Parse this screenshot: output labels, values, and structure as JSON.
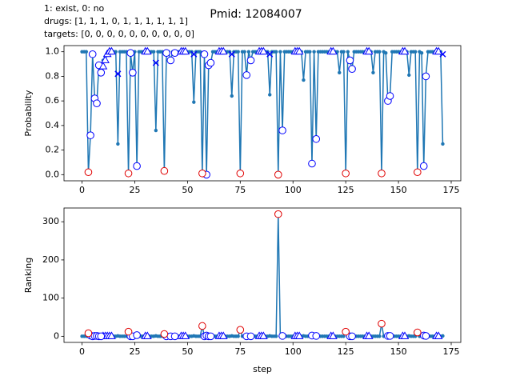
{
  "suptitle": "Pmid: 12084007",
  "annotation": [
    "1: exist,    0: no",
    "drugs: [1, 1, 1, 0, 1, 1, 1, 1, 1, 1]",
    "targets: [0, 0, 0, 0, 0, 0, 0, 0, 0, 0]"
  ],
  "chart_data": [
    {
      "type": "line",
      "ylabel": "Probability",
      "xlim": [
        -8.55,
        179.55
      ],
      "ylim": [
        -0.05,
        1.05
      ],
      "xticks": [
        0,
        25,
        50,
        75,
        100,
        125,
        150,
        175
      ],
      "yticks": [
        {
          "value": 0,
          "label": "0.0"
        },
        0.2,
        0.4,
        0.6,
        0.8,
        {
          "value": 1,
          "label": "1.0"
        }
      ],
      "series": [
        {
          "color": "#1f77b4",
          "marker": "dot",
          "line": true,
          "x": [
            0,
            1,
            2,
            3,
            4,
            5,
            6,
            7,
            8,
            9,
            10,
            11,
            12,
            13,
            14,
            15,
            16,
            17,
            18,
            19,
            20,
            21,
            22,
            23,
            24,
            25,
            26,
            27,
            28,
            29,
            30,
            31,
            32,
            33,
            34,
            35,
            36,
            37,
            38,
            39,
            40,
            41,
            42,
            43,
            44,
            45,
            46,
            47,
            48,
            49,
            50,
            51,
            52,
            53,
            54,
            55,
            56,
            57,
            58,
            59,
            60,
            61,
            62,
            63,
            64,
            65,
            66,
            67,
            68,
            69,
            70,
            71,
            72,
            73,
            74,
            75,
            76,
            77,
            78,
            79,
            80,
            81,
            82,
            83,
            84,
            85,
            86,
            87,
            88,
            89,
            90,
            91,
            92,
            93,
            94,
            95,
            96,
            97,
            98,
            99,
            100,
            101,
            102,
            103,
            104,
            105,
            106,
            107,
            108,
            109,
            110,
            111,
            112,
            113,
            114,
            115,
            116,
            117,
            118,
            119,
            120,
            121,
            122,
            123,
            124,
            125,
            126,
            127,
            128,
            129,
            130,
            131,
            132,
            133,
            134,
            135,
            136,
            137,
            138,
            139,
            140,
            141,
            142,
            143,
            144,
            145,
            146,
            147,
            148,
            149,
            150,
            151,
            152,
            153,
            154,
            155,
            156,
            157,
            158,
            159,
            160,
            161,
            162,
            163,
            164,
            165,
            166,
            167,
            168,
            169,
            170,
            171
          ],
          "values": [
            1,
            1,
            1,
            0.02,
            0.32,
            0.98,
            0.62,
            0.58,
            0.89,
            0.83,
            0.93,
            0.96,
            0.98,
            1,
            1,
            1,
            1,
            0.25,
            1,
            1,
            1,
            1,
            0.01,
            0.99,
            0.83,
            1,
            0.07,
            1,
            1,
            1,
            1,
            1,
            1,
            1,
            1,
            0.36,
            1,
            1,
            1,
            0.03,
            0.99,
            1,
            0.93,
            1,
            1,
            1,
            1,
            1,
            1,
            1,
            1,
            1,
            1,
            0.59,
            1,
            1,
            1,
            0.01,
            0.98,
            0,
            0.89,
            0.91,
            1,
            1,
            1,
            1,
            1,
            1,
            1,
            1,
            1,
            0.64,
            1,
            1,
            1,
            0.01,
            1,
            1,
            0.81,
            1,
            0.93,
            1,
            1,
            1,
            1,
            1,
            1,
            1,
            1,
            0.65,
            1,
            1,
            1,
            0,
            1,
            0.36,
            1,
            1,
            1,
            1,
            1,
            1,
            1,
            1,
            1,
            0.77,
            1,
            1,
            1,
            0.09,
            1,
            0.29,
            1,
            1,
            1,
            1,
            1,
            1,
            1,
            1,
            1,
            1,
            0.83,
            1,
            1,
            0.01,
            1,
            0.93,
            0.86,
            1,
            1,
            1,
            1,
            1,
            1,
            1,
            1,
            1,
            0.83,
            1,
            1,
            1,
            0.01,
            1,
            0.99,
            0.6,
            0.64,
            1,
            1,
            1,
            1,
            1,
            1,
            1,
            1,
            0.81,
            1,
            1,
            1,
            0.02,
            1,
            0.99,
            0.07,
            0.8,
            1,
            1,
            1,
            1,
            1,
            1,
            1,
            0.25
          ]
        },
        {
          "color": "#0000ff",
          "marker": "o",
          "x": [
            4,
            5,
            6,
            7,
            8,
            9,
            23,
            24,
            26,
            40,
            42,
            44,
            58,
            59,
            60,
            61,
            78,
            80,
            95,
            109,
            111,
            127,
            128,
            145,
            146,
            162,
            163
          ],
          "values": [
            0.32,
            0.98,
            0.62,
            0.58,
            0.89,
            0.83,
            0.99,
            0.83,
            0.07,
            0.99,
            0.93,
            0.99,
            0.98,
            0,
            0.89,
            0.91,
            0.81,
            0.93,
            0.36,
            0.09,
            0.29,
            0.93,
            0.86,
            0.6,
            0.64,
            0.07,
            0.8
          ]
        },
        {
          "color": "#0000ff",
          "marker": "^",
          "x": [
            10,
            11,
            12,
            13,
            14,
            30,
            31,
            47,
            48,
            49,
            65,
            66,
            67,
            84,
            85,
            86,
            101,
            102,
            103,
            118,
            119,
            135,
            136,
            152,
            153,
            168,
            169
          ],
          "values": [
            0.88,
            0.93,
            0.98,
            1,
            1,
            1,
            1,
            1,
            1,
            1,
            1,
            1,
            1,
            1,
            1,
            1,
            1,
            1,
            1,
            1,
            1,
            1,
            1,
            1,
            1,
            1,
            1
          ]
        },
        {
          "color": "#0000ff",
          "marker": "x",
          "x": [
            17,
            35,
            53,
            71,
            89,
            171
          ],
          "values": [
            0.82,
            0.91,
            0.98,
            0.98,
            0.98,
            0.98
          ]
        },
        {
          "color": "#e00000",
          "marker": "o",
          "x": [
            3,
            22,
            39,
            57,
            75,
            93,
            125,
            142,
            159
          ],
          "values": [
            0.02,
            0.01,
            0.03,
            0.01,
            0.01,
            0,
            0.01,
            0.01,
            0.02
          ]
        }
      ]
    },
    {
      "type": "line",
      "ylabel": "Ranking",
      "xlabel": "step",
      "xlim": [
        -8.55,
        179.55
      ],
      "ylim": [
        -16,
        336
      ],
      "xticks": [
        0,
        25,
        50,
        75,
        100,
        125,
        150,
        175
      ],
      "yticks": [
        0,
        100,
        200,
        300
      ],
      "series": [
        {
          "color": "#1f77b4",
          "marker": "dot",
          "line": true,
          "x": [
            0,
            1,
            2,
            3,
            4,
            5,
            6,
            7,
            8,
            9,
            10,
            11,
            12,
            13,
            14,
            15,
            16,
            17,
            18,
            19,
            20,
            21,
            22,
            23,
            24,
            25,
            26,
            27,
            28,
            29,
            30,
            31,
            32,
            33,
            34,
            35,
            36,
            37,
            38,
            39,
            40,
            41,
            42,
            43,
            44,
            45,
            46,
            47,
            48,
            49,
            50,
            51,
            52,
            53,
            54,
            55,
            56,
            57,
            58,
            59,
            60,
            61,
            62,
            63,
            64,
            65,
            66,
            67,
            68,
            69,
            70,
            71,
            72,
            73,
            74,
            75,
            76,
            77,
            78,
            79,
            80,
            81,
            82,
            83,
            84,
            85,
            86,
            87,
            88,
            89,
            90,
            91,
            92,
            93,
            94,
            95,
            96,
            97,
            98,
            99,
            100,
            101,
            102,
            103,
            104,
            105,
            106,
            107,
            108,
            109,
            110,
            111,
            112,
            113,
            114,
            115,
            116,
            117,
            118,
            119,
            120,
            121,
            122,
            123,
            124,
            125,
            126,
            127,
            128,
            129,
            130,
            131,
            132,
            133,
            134,
            135,
            136,
            137,
            138,
            139,
            140,
            141,
            142,
            143,
            144,
            145,
            146,
            147,
            148,
            149,
            150,
            151,
            152,
            153,
            154,
            155,
            156,
            157,
            158,
            159,
            160,
            161,
            162,
            163,
            164,
            165,
            166,
            167,
            168,
            169,
            170,
            171
          ],
          "values": [
            0,
            0,
            0,
            8,
            2,
            0,
            1,
            1,
            0,
            0,
            0,
            0,
            0,
            0,
            0,
            0,
            0,
            1,
            0,
            0,
            0,
            0,
            12,
            0,
            0,
            0,
            3,
            0,
            0,
            0,
            0,
            0,
            0,
            0,
            0,
            1,
            0,
            0,
            0,
            6,
            0,
            0,
            0,
            0,
            0,
            0,
            0,
            0,
            0,
            0,
            0,
            0,
            0,
            1,
            0,
            0,
            0,
            27,
            0,
            2,
            0,
            0,
            0,
            0,
            0,
            0,
            0,
            0,
            0,
            0,
            0,
            1,
            0,
            0,
            0,
            17,
            0,
            0,
            0,
            0,
            0,
            0,
            0,
            0,
            0,
            0,
            0,
            0,
            0,
            1,
            0,
            0,
            0,
            320,
            0,
            1,
            0,
            0,
            0,
            0,
            0,
            0,
            0,
            0,
            0,
            1,
            0,
            0,
            0,
            2,
            0,
            1,
            0,
            0,
            0,
            0,
            0,
            0,
            0,
            0,
            0,
            0,
            0,
            0,
            0,
            12,
            0,
            0,
            0,
            0,
            0,
            0,
            0,
            0,
            0,
            0,
            0,
            0,
            0,
            0,
            0,
            0,
            33,
            0,
            0,
            1,
            1,
            0,
            0,
            0,
            0,
            0,
            0,
            0,
            0,
            1,
            0,
            0,
            0,
            10,
            0,
            0,
            2,
            1,
            0,
            0,
            0,
            0,
            0,
            0,
            0,
            1
          ]
        },
        {
          "color": "#0000ff",
          "marker": "^",
          "x": [
            10,
            11,
            12,
            13,
            14,
            30,
            31,
            47,
            48,
            49,
            65,
            66,
            67,
            84,
            85,
            86,
            101,
            102,
            103,
            118,
            119,
            135,
            136,
            152,
            153,
            168,
            169
          ],
          "values": [
            0,
            0,
            0,
            0,
            0,
            0,
            0,
            0,
            0,
            0,
            0,
            0,
            0,
            0,
            0,
            0,
            0,
            0,
            0,
            0,
            0,
            0,
            0,
            0,
            0,
            0,
            0
          ]
        },
        {
          "color": "#0000ff",
          "marker": "o",
          "x": [
            4,
            5,
            6,
            7,
            8,
            9,
            23,
            24,
            26,
            40,
            42,
            44,
            58,
            59,
            60,
            61,
            78,
            80,
            95,
            109,
            111,
            127,
            128,
            145,
            146,
            162,
            163
          ],
          "values": [
            2,
            0,
            1,
            1,
            0,
            0,
            0,
            0,
            3,
            0,
            0,
            0,
            0,
            2,
            0,
            0,
            0,
            0,
            1,
            2,
            1,
            0,
            0,
            1,
            1,
            2,
            1
          ]
        },
        {
          "color": "#e00000",
          "marker": "o",
          "x": [
            3,
            22,
            39,
            57,
            75,
            93,
            125,
            142,
            159
          ],
          "values": [
            8,
            12,
            6,
            27,
            17,
            320,
            12,
            33,
            10
          ]
        }
      ]
    }
  ]
}
